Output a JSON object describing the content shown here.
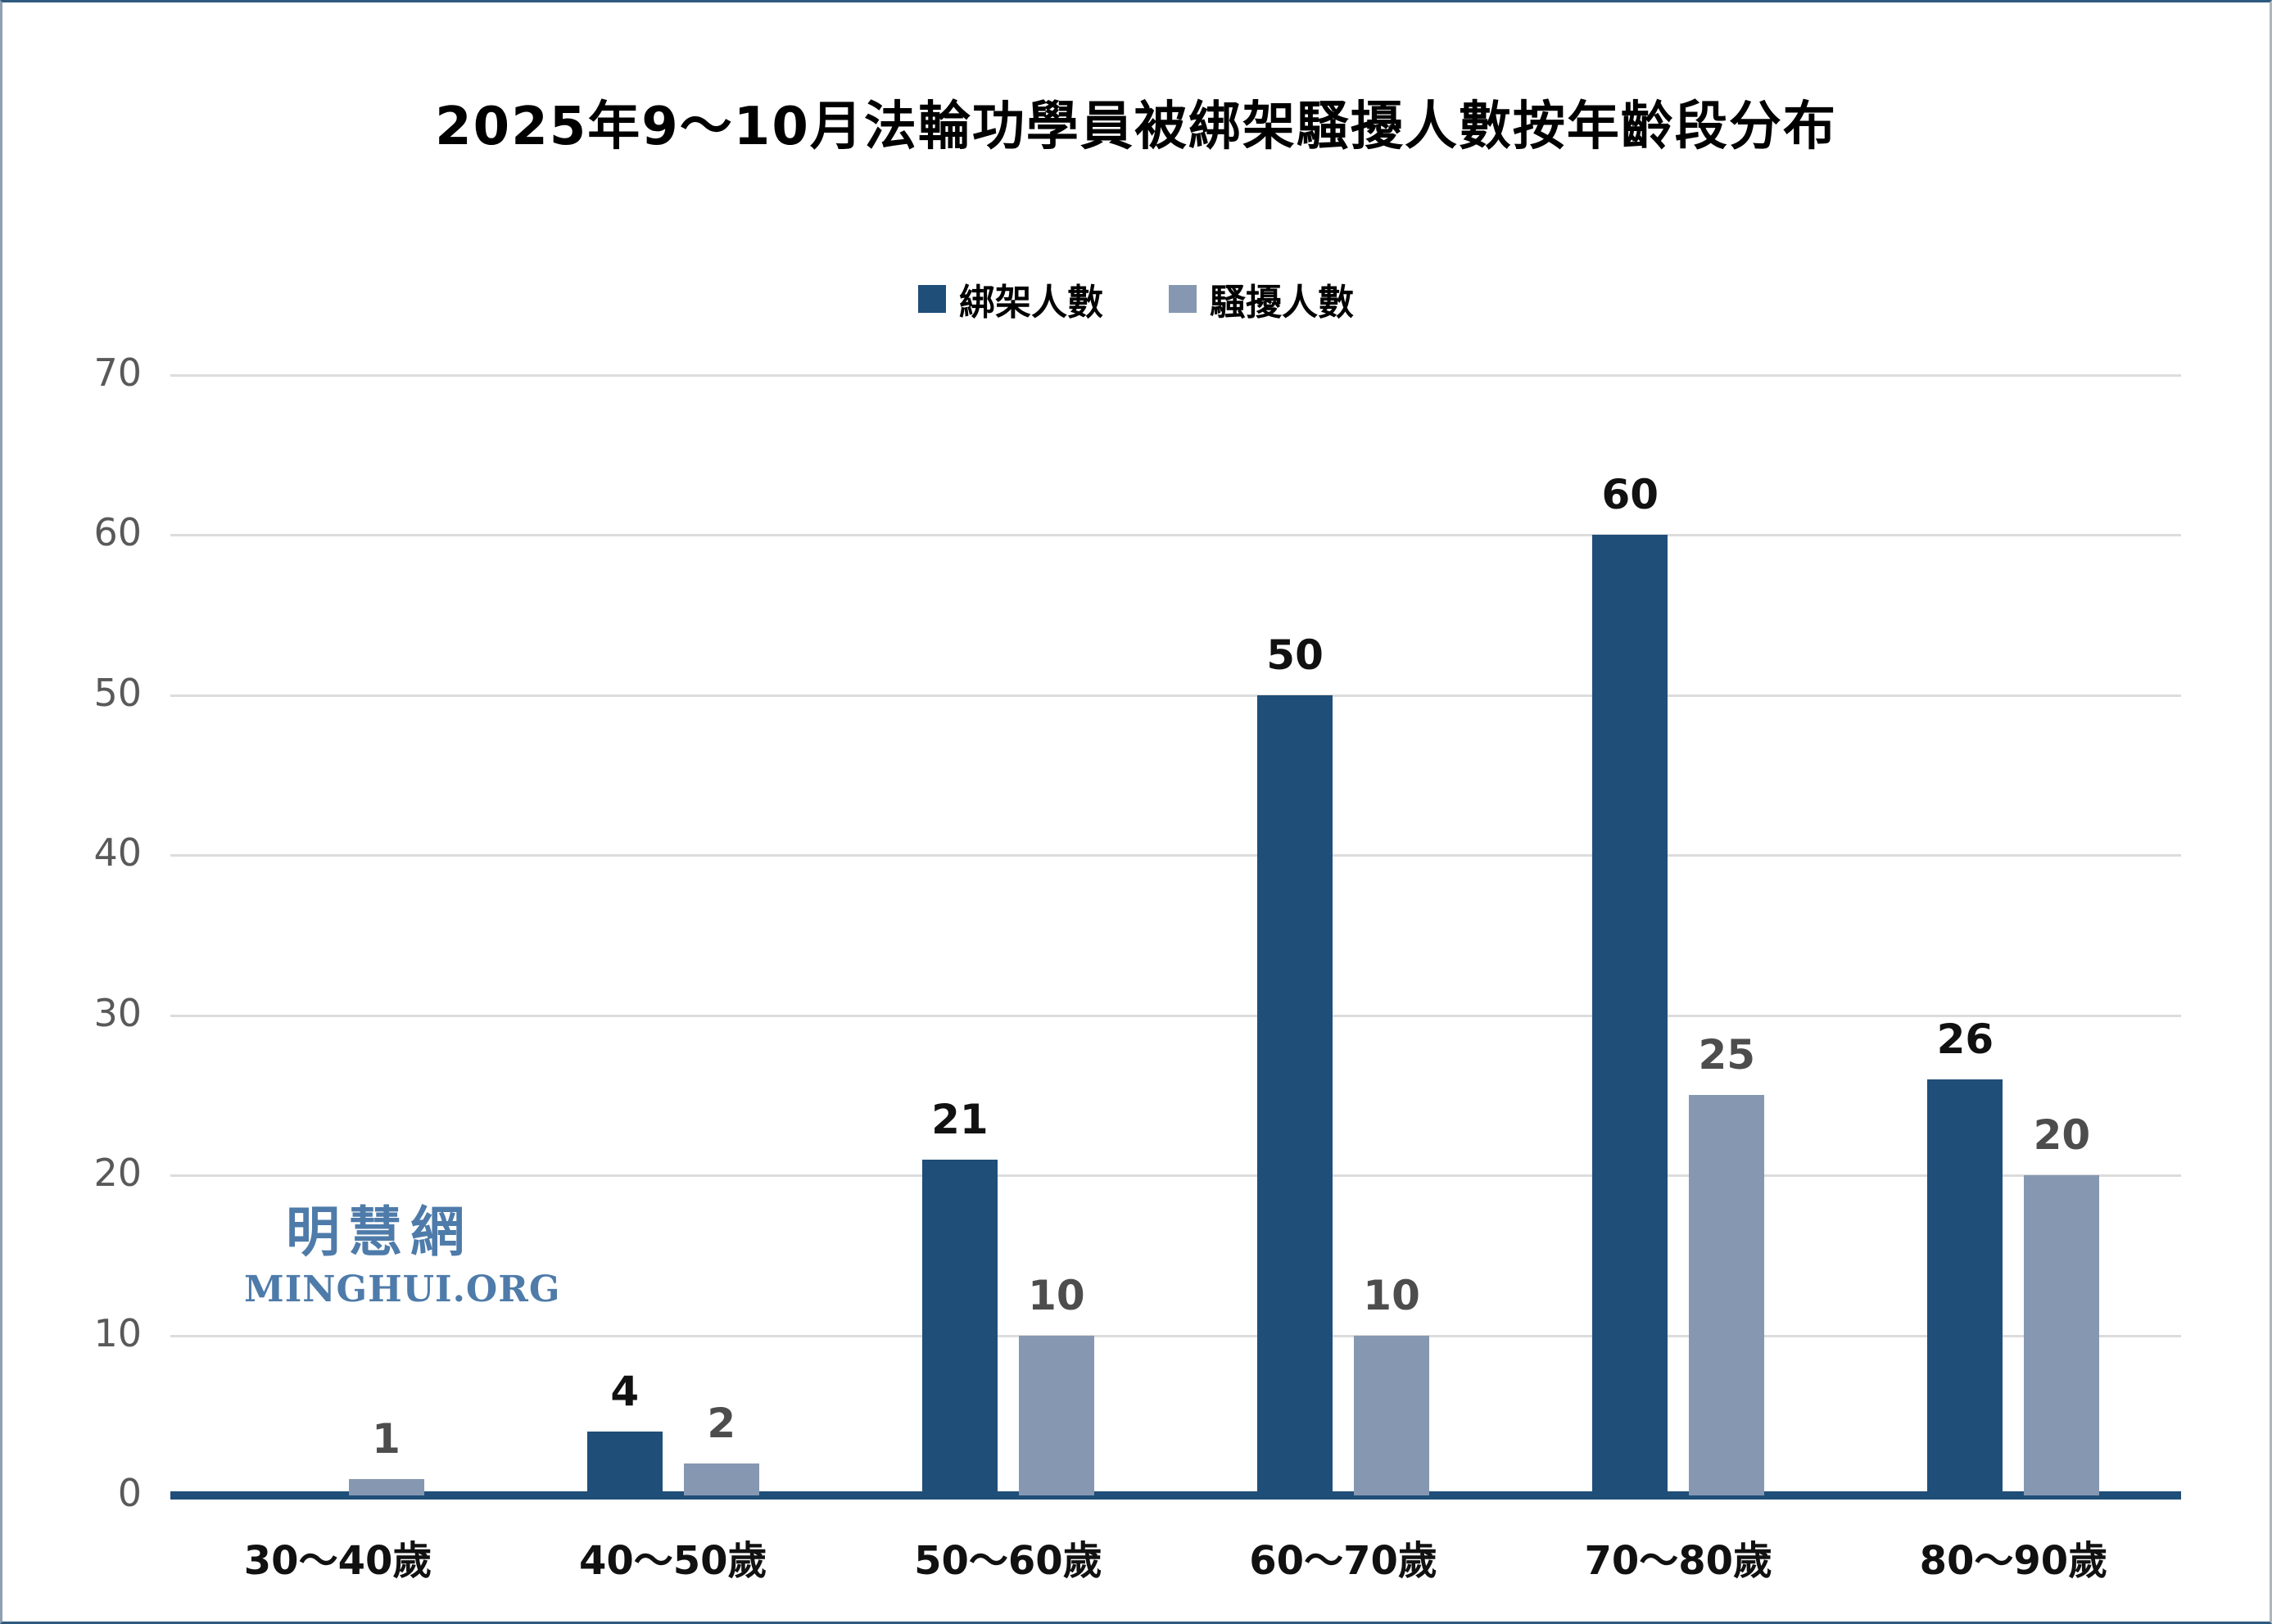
{
  "title": "2025年9～10月法輪功學員被綁架騷擾人數按年齡段分布",
  "watermark": {
    "cjk": "明慧網",
    "latin": "MINGHUI.ORG"
  },
  "colors": {
    "kidnap_bar": "#1F4E79",
    "harass_bar": "#8698B1",
    "axis_line": "#1F4E79",
    "gridline": "#DCDCDC",
    "tick_label": "#595959",
    "kidnap_value_label": "#111111",
    "harass_value_label": "#4D4D4D",
    "category_label": "#111111",
    "watermark": "#4E7BA9",
    "title": "#000000"
  },
  "chart_data": {
    "type": "bar",
    "title": "2025年9～10月法輪功學員被綁架騷擾人數按年齡段分布",
    "categories": [
      "30～40歲",
      "40～50歲",
      "50～60歲",
      "60～70歲",
      "70～80歲",
      "80～90歲"
    ],
    "series": [
      {
        "name": "綁架人數",
        "color": "#1F4E79",
        "values": [
          0,
          4,
          21,
          50,
          60,
          26
        ]
      },
      {
        "name": "騷擾人數",
        "color": "#8698B1",
        "values": [
          1,
          2,
          10,
          10,
          25,
          20
        ]
      }
    ],
    "xlabel": "",
    "ylabel": "",
    "ylim": [
      0,
      70
    ],
    "yticks": [
      0,
      10,
      20,
      30,
      40,
      50,
      60,
      70
    ],
    "grid": true,
    "legend_position": "top",
    "value_labels": true
  }
}
